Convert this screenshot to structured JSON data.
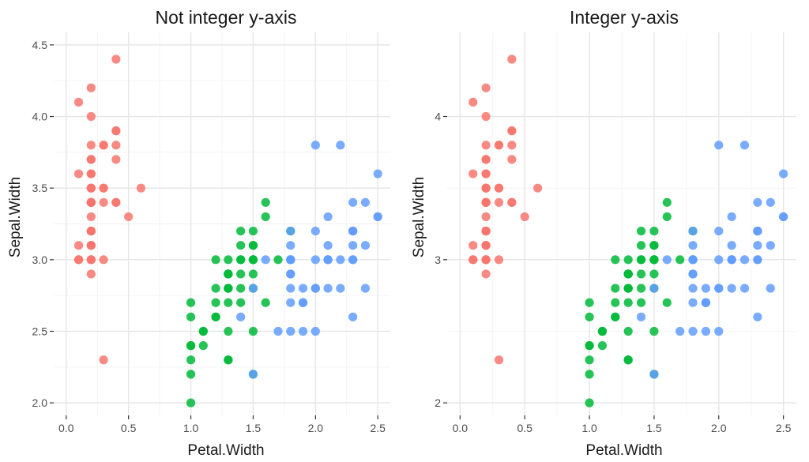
{
  "chart_data": [
    {
      "type": "scatter",
      "title": "Not integer y-axis",
      "xlabel": "Petal.Width",
      "ylabel": "Sepal.Width",
      "xlim": [
        0,
        2.5
      ],
      "ylim": [
        2.0,
        4.5
      ],
      "x_ticks": [
        "0.0",
        "0.5",
        "1.0",
        "1.5",
        "2.0",
        "2.5"
      ],
      "y_ticks": [
        "2.0",
        "2.5",
        "3.0",
        "3.5",
        "4.0",
        "4.5"
      ],
      "grid": true,
      "legend": "none",
      "series_colors": [
        "#f8766d",
        "#00ba38",
        "#619cff"
      ],
      "series": [
        {
          "points": [
            [
              0.2,
              3.5
            ],
            [
              0.2,
              3.0
            ],
            [
              0.2,
              3.2
            ],
            [
              0.2,
              3.1
            ],
            [
              0.2,
              3.6
            ],
            [
              0.4,
              3.9
            ],
            [
              0.3,
              3.4
            ],
            [
              0.2,
              3.4
            ],
            [
              0.2,
              2.9
            ],
            [
              0.1,
              3.1
            ],
            [
              0.2,
              3.7
            ],
            [
              0.2,
              3.4
            ],
            [
              0.1,
              3.0
            ],
            [
              0.1,
              3.0
            ],
            [
              0.2,
              4.0
            ],
            [
              0.4,
              4.4
            ],
            [
              0.4,
              3.9
            ],
            [
              0.3,
              3.5
            ],
            [
              0.3,
              3.8
            ],
            [
              0.3,
              3.8
            ],
            [
              0.2,
              3.4
            ],
            [
              0.4,
              3.7
            ],
            [
              0.2,
              3.6
            ],
            [
              0.5,
              3.3
            ],
            [
              0.2,
              3.4
            ],
            [
              0.2,
              3.0
            ],
            [
              0.4,
              3.4
            ],
            [
              0.2,
              3.5
            ],
            [
              0.2,
              3.4
            ],
            [
              0.2,
              3.2
            ],
            [
              0.2,
              3.1
            ],
            [
              0.4,
              3.4
            ],
            [
              0.1,
              4.1
            ],
            [
              0.2,
              4.2
            ],
            [
              0.2,
              3.1
            ],
            [
              0.2,
              3.2
            ],
            [
              0.2,
              3.5
            ],
            [
              0.1,
              3.6
            ],
            [
              0.2,
              3.0
            ],
            [
              0.2,
              3.4
            ],
            [
              0.3,
              3.5
            ],
            [
              0.3,
              2.3
            ],
            [
              0.2,
              3.2
            ],
            [
              0.6,
              3.5
            ],
            [
              0.4,
              3.8
            ],
            [
              0.3,
              3.0
            ],
            [
              0.2,
              3.8
            ],
            [
              0.2,
              3.2
            ],
            [
              0.2,
              3.7
            ],
            [
              0.2,
              3.3
            ]
          ]
        },
        {
          "points": [
            [
              1.4,
              3.2
            ],
            [
              1.5,
              3.2
            ],
            [
              1.5,
              3.1
            ],
            [
              1.3,
              2.3
            ],
            [
              1.5,
              2.8
            ],
            [
              1.3,
              2.8
            ],
            [
              1.6,
              3.3
            ],
            [
              1.0,
              2.4
            ],
            [
              1.3,
              2.9
            ],
            [
              1.4,
              2.7
            ],
            [
              1.0,
              2.0
            ],
            [
              1.5,
              3.0
            ],
            [
              1.0,
              2.2
            ],
            [
              1.4,
              2.9
            ],
            [
              1.3,
              2.9
            ],
            [
              1.4,
              3.1
            ],
            [
              1.5,
              3.0
            ],
            [
              1.0,
              2.7
            ],
            [
              1.5,
              2.2
            ],
            [
              1.1,
              2.5
            ],
            [
              1.8,
              3.2
            ],
            [
              1.3,
              2.8
            ],
            [
              1.5,
              2.5
            ],
            [
              1.2,
              2.8
            ],
            [
              1.3,
              2.9
            ],
            [
              1.4,
              3.0
            ],
            [
              1.4,
              2.8
            ],
            [
              1.7,
              3.0
            ],
            [
              1.5,
              2.9
            ],
            [
              1.0,
              2.6
            ],
            [
              1.1,
              2.4
            ],
            [
              1.0,
              2.4
            ],
            [
              1.2,
              2.7
            ],
            [
              1.6,
              2.7
            ],
            [
              1.5,
              3.0
            ],
            [
              1.6,
              3.4
            ],
            [
              1.5,
              3.1
            ],
            [
              1.3,
              2.3
            ],
            [
              1.3,
              3.0
            ],
            [
              1.3,
              2.5
            ],
            [
              1.2,
              2.6
            ],
            [
              1.4,
              3.0
            ],
            [
              1.2,
              2.6
            ],
            [
              1.0,
              2.3
            ],
            [
              1.3,
              2.7
            ],
            [
              1.2,
              3.0
            ],
            [
              1.3,
              2.9
            ],
            [
              1.3,
              2.9
            ],
            [
              1.1,
              2.5
            ],
            [
              1.3,
              2.8
            ]
          ]
        },
        {
          "points": [
            [
              2.5,
              3.3
            ],
            [
              1.9,
              2.7
            ],
            [
              2.1,
              3.0
            ],
            [
              1.8,
              2.9
            ],
            [
              2.2,
              3.0
            ],
            [
              2.1,
              3.0
            ],
            [
              1.7,
              2.5
            ],
            [
              1.8,
              2.9
            ],
            [
              1.8,
              2.5
            ],
            [
              2.5,
              3.6
            ],
            [
              2.0,
              3.2
            ],
            [
              1.9,
              2.7
            ],
            [
              2.1,
              3.0
            ],
            [
              2.0,
              2.5
            ],
            [
              2.4,
              2.8
            ],
            [
              2.3,
              3.2
            ],
            [
              1.8,
              3.0
            ],
            [
              2.2,
              3.8
            ],
            [
              2.3,
              2.6
            ],
            [
              1.5,
              2.2
            ],
            [
              2.3,
              3.2
            ],
            [
              2.0,
              2.8
            ],
            [
              2.0,
              2.8
            ],
            [
              1.8,
              2.7
            ],
            [
              2.1,
              3.3
            ],
            [
              1.8,
              3.2
            ],
            [
              1.8,
              2.8
            ],
            [
              1.8,
              3.0
            ],
            [
              2.1,
              2.8
            ],
            [
              1.6,
              3.0
            ],
            [
              1.9,
              2.8
            ],
            [
              2.0,
              3.8
            ],
            [
              2.2,
              2.8
            ],
            [
              1.5,
              2.8
            ],
            [
              1.4,
              2.6
            ],
            [
              2.3,
              3.0
            ],
            [
              2.4,
              3.4
            ],
            [
              1.8,
              3.1
            ],
            [
              1.8,
              3.0
            ],
            [
              2.1,
              3.1
            ],
            [
              2.4,
              3.1
            ],
            [
              2.3,
              3.1
            ],
            [
              1.9,
              2.7
            ],
            [
              2.3,
              3.2
            ],
            [
              2.5,
              3.3
            ],
            [
              2.3,
              3.0
            ],
            [
              1.9,
              2.5
            ],
            [
              2.0,
              3.0
            ],
            [
              2.3,
              3.4
            ],
            [
              1.8,
              3.0
            ]
          ]
        }
      ]
    },
    {
      "type": "scatter",
      "title": "Integer y-axis",
      "xlabel": "Petal.Width",
      "ylabel": "Sepal.Width",
      "xlim": [
        0,
        2.5
      ],
      "ylim": [
        2.0,
        4.5
      ],
      "x_ticks": [
        "0.0",
        "0.5",
        "1.0",
        "1.5",
        "2.0",
        "2.5"
      ],
      "y_ticks": [
        "2",
        "3",
        "4"
      ],
      "grid": true,
      "legend": "none",
      "series_colors": [
        "#f8766d",
        "#00ba38",
        "#619cff"
      ],
      "series_ref": 0
    }
  ]
}
